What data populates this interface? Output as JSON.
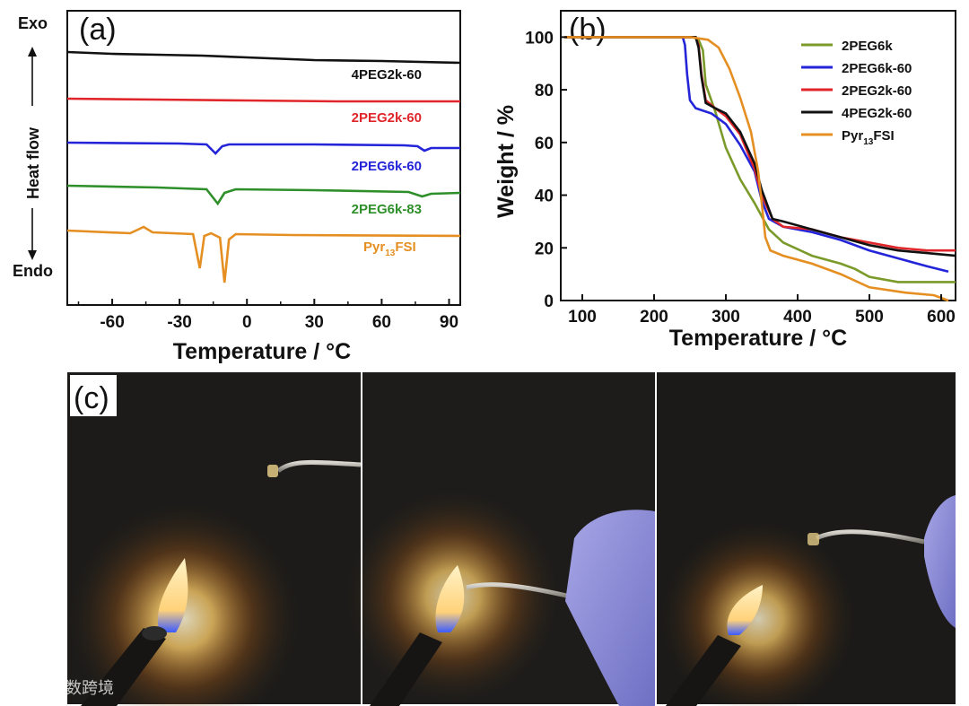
{
  "colors": {
    "black": "#111111",
    "red": "#e0262a",
    "blue": "#2424d8",
    "green": "#2f8f2a",
    "olive": "#7a9a2a",
    "orange": "#e58f22"
  },
  "chart_data": [
    {
      "panel": "(a)",
      "type": "line",
      "xlabel": "Temperature / °C",
      "ylabel": "Heat flow",
      "side_top": "Exo",
      "side_bottom": "Endo",
      "xlim": [
        -80,
        95
      ],
      "xticks": [
        "-60",
        "-30",
        "0",
        "30",
        "60",
        "90"
      ],
      "series": [
        {
          "name": "4PEG2k-60",
          "color": "#111111",
          "offset": 0,
          "points": [
            [
              -80,
              0
            ],
            [
              -60,
              -2
            ],
            [
              -40,
              -3
            ],
            [
              -20,
              -4
            ],
            [
              0,
              -6
            ],
            [
              30,
              -9
            ],
            [
              60,
              -10
            ],
            [
              95,
              -12
            ]
          ]
        },
        {
          "name": "2PEG2k-60",
          "color": "#e0262a",
          "offset": 1,
          "points": [
            [
              -80,
              0
            ],
            [
              -40,
              -1
            ],
            [
              0,
              -2
            ],
            [
              40,
              -3
            ],
            [
              95,
              -3
            ]
          ]
        },
        {
          "name": "2PEG6k-60",
          "color": "#2424d8",
          "offset": 2,
          "points": [
            [
              -80,
              0
            ],
            [
              -30,
              -1
            ],
            [
              -18,
              -2
            ],
            [
              -14,
              -12
            ],
            [
              -11,
              -4
            ],
            [
              -8,
              -2
            ],
            [
              30,
              -2
            ],
            [
              70,
              -3
            ],
            [
              76,
              -4
            ],
            [
              79,
              -9
            ],
            [
              82,
              -6
            ],
            [
              95,
              -6
            ]
          ]
        },
        {
          "name": "2PEG6k-83",
          "color": "#2f8f2a",
          "offset": 3,
          "points": [
            [
              -80,
              0
            ],
            [
              -40,
              -2
            ],
            [
              -18,
              -4
            ],
            [
              -13,
              -20
            ],
            [
              -10,
              -8
            ],
            [
              -5,
              -4
            ],
            [
              30,
              -5
            ],
            [
              72,
              -7
            ],
            [
              78,
              -12
            ],
            [
              82,
              -9
            ],
            [
              95,
              -8
            ]
          ]
        },
        {
          "name": "Pyr13FSI",
          "color": "#e58f22",
          "offset": 4,
          "points": [
            [
              -80,
              0
            ],
            [
              -52,
              -3
            ],
            [
              -46,
              4
            ],
            [
              -42,
              -2
            ],
            [
              -24,
              -4
            ],
            [
              -21,
              -42
            ],
            [
              -19,
              -6
            ],
            [
              -16,
              -3
            ],
            [
              -12,
              -8
            ],
            [
              -10,
              -58
            ],
            [
              -8,
              -10
            ],
            [
              -5,
              -4
            ],
            [
              20,
              -5
            ],
            [
              95,
              -6
            ]
          ]
        }
      ]
    },
    {
      "panel": "(b)",
      "type": "line",
      "xlabel": "Temperature / °C",
      "ylabel": "Weight / %",
      "xlim": [
        70,
        620
      ],
      "ylim": [
        0,
        110
      ],
      "xticks": [
        "100",
        "200",
        "300",
        "400",
        "500",
        "600"
      ],
      "yticks": [
        "0",
        "20",
        "40",
        "60",
        "80",
        "100"
      ],
      "legend_position": "top-right",
      "series": [
        {
          "name": "2PEG6k",
          "color": "#7a9a2a",
          "points": [
            [
              75,
              100
            ],
            [
              255,
              100
            ],
            [
              262,
              99
            ],
            [
              268,
              95
            ],
            [
              272,
              82
            ],
            [
              285,
              72
            ],
            [
              300,
              58
            ],
            [
              320,
              46
            ],
            [
              340,
              37
            ],
            [
              360,
              27
            ],
            [
              380,
              22
            ],
            [
              420,
              17
            ],
            [
              460,
              14
            ],
            [
              480,
              12
            ],
            [
              500,
              9
            ],
            [
              540,
              7
            ],
            [
              580,
              7
            ],
            [
              620,
              7
            ]
          ]
        },
        {
          "name": "2PEG6k-60",
          "color": "#2424d8",
          "points": [
            [
              75,
              100
            ],
            [
              240,
              100
            ],
            [
              243,
              97
            ],
            [
              246,
              86
            ],
            [
              250,
              76
            ],
            [
              258,
              73
            ],
            [
              280,
              71
            ],
            [
              300,
              67
            ],
            [
              320,
              59
            ],
            [
              340,
              49
            ],
            [
              350,
              38
            ],
            [
              360,
              31
            ],
            [
              380,
              28
            ],
            [
              420,
              26
            ],
            [
              460,
              23
            ],
            [
              500,
              19
            ],
            [
              540,
              16
            ],
            [
              580,
              13
            ],
            [
              610,
              11
            ]
          ]
        },
        {
          "name": "2PEG2k-60",
          "color": "#e0262a",
          "points": [
            [
              75,
              100
            ],
            [
              258,
              100
            ],
            [
              262,
              97
            ],
            [
              266,
              86
            ],
            [
              272,
              76
            ],
            [
              285,
              73
            ],
            [
              300,
              70
            ],
            [
              320,
              63
            ],
            [
              340,
              50
            ],
            [
              350,
              40
            ],
            [
              365,
              31
            ],
            [
              380,
              28
            ],
            [
              420,
              27
            ],
            [
              460,
              24
            ],
            [
              500,
              22
            ],
            [
              540,
              20
            ],
            [
              580,
              19
            ],
            [
              620,
              19
            ]
          ]
        },
        {
          "name": "4PEG2k-60",
          "color": "#111111",
          "points": [
            [
              75,
              100
            ],
            [
              258,
              100
            ],
            [
              262,
              96
            ],
            [
              266,
              85
            ],
            [
              272,
              75
            ],
            [
              285,
              73
            ],
            [
              300,
              71
            ],
            [
              320,
              64
            ],
            [
              340,
              52
            ],
            [
              350,
              42
            ],
            [
              365,
              31
            ],
            [
              380,
              30
            ],
            [
              420,
              27
            ],
            [
              460,
              24
            ],
            [
              500,
              21
            ],
            [
              540,
              19
            ],
            [
              580,
              18
            ],
            [
              620,
              17
            ]
          ]
        },
        {
          "name": "Pyr13FSI",
          "color": "#e58f22",
          "points": [
            [
              75,
              100
            ],
            [
              250,
              100
            ],
            [
              275,
              99
            ],
            [
              290,
              96
            ],
            [
              305,
              88
            ],
            [
              320,
              77
            ],
            [
              335,
              64
            ],
            [
              345,
              49
            ],
            [
              350,
              37
            ],
            [
              355,
              24
            ],
            [
              362,
              19
            ],
            [
              380,
              17
            ],
            [
              420,
              14
            ],
            [
              460,
              10
            ],
            [
              500,
              5
            ],
            [
              550,
              3
            ],
            [
              590,
              2
            ],
            [
              610,
              0
            ]
          ]
        }
      ]
    }
  ],
  "photo_panel": {
    "label": "(c)",
    "watermark": "大数跨境"
  }
}
